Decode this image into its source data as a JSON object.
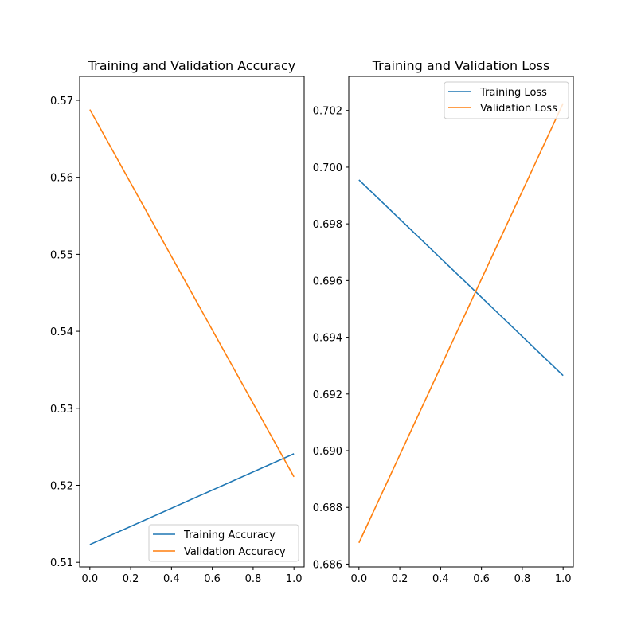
{
  "colors": {
    "training": "#1f77b4",
    "validation": "#ff7f0e"
  },
  "chart_data": [
    {
      "type": "line",
      "title": "Training and Validation Accuracy",
      "x": [
        0.0,
        1.0
      ],
      "xlim": [
        -0.05,
        1.05
      ],
      "ylim": [
        0.5094,
        0.5731
      ],
      "xticks": [
        0.0,
        0.2,
        0.4,
        0.6,
        0.8,
        1.0
      ],
      "xtick_labels": [
        "0.0",
        "0.2",
        "0.4",
        "0.6",
        "0.8",
        "1.0"
      ],
      "yticks": [
        0.51,
        0.52,
        0.53,
        0.54,
        0.55,
        0.56,
        0.57
      ],
      "ytick_labels": [
        "0.51",
        "0.52",
        "0.53",
        "0.54",
        "0.55",
        "0.56",
        "0.57"
      ],
      "legend_position": "lower-right",
      "series": [
        {
          "name": "Training Accuracy",
          "color_key": "training",
          "values": [
            0.5123,
            0.5241
          ]
        },
        {
          "name": "Validation Accuracy",
          "color_key": "validation",
          "values": [
            0.5688,
            0.5211
          ]
        }
      ]
    },
    {
      "type": "line",
      "title": "Training and Validation Loss",
      "x": [
        0.0,
        1.0
      ],
      "xlim": [
        -0.05,
        1.05
      ],
      "ylim": [
        0.6859,
        0.7032
      ],
      "xticks": [
        0.0,
        0.2,
        0.4,
        0.6,
        0.8,
        1.0
      ],
      "xtick_labels": [
        "0.0",
        "0.2",
        "0.4",
        "0.6",
        "0.8",
        "1.0"
      ],
      "yticks": [
        0.686,
        0.688,
        0.69,
        0.692,
        0.694,
        0.696,
        0.698,
        0.7,
        0.702
      ],
      "ytick_labels": [
        "0.686",
        "0.688",
        "0.690",
        "0.692",
        "0.694",
        "0.696",
        "0.698",
        "0.700",
        "0.702"
      ],
      "legend_position": "upper-right",
      "series": [
        {
          "name": "Training Loss",
          "color_key": "training",
          "values": [
            0.69955,
            0.69265
          ]
        },
        {
          "name": "Validation Loss",
          "color_key": "validation",
          "values": [
            0.68675,
            0.70225
          ]
        }
      ]
    }
  ]
}
